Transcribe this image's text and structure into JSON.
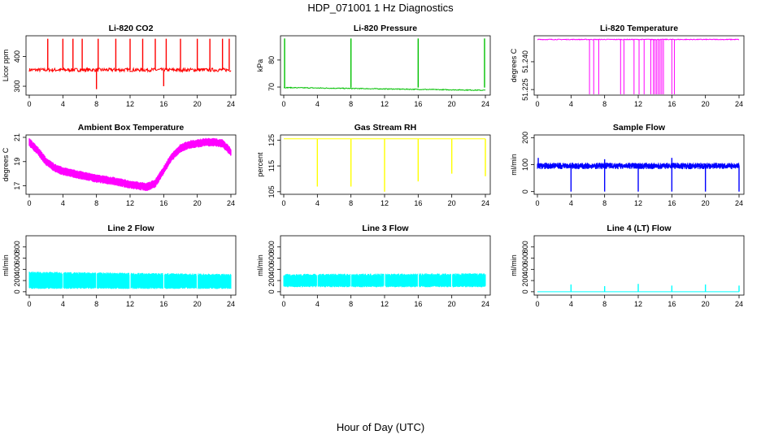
{
  "figure": {
    "title": "HDP_071001  1 Hz Diagnostics",
    "xlabel": "Hour of Day (UTC)"
  },
  "chart_data": [
    {
      "type": "line",
      "title": "Li-820 CO2",
      "ylabel": "Licor ppm",
      "color": "#ff0000",
      "xlim": [
        0,
        24
      ],
      "ylim": [
        270,
        470
      ],
      "xticks": [
        0,
        4,
        8,
        12,
        16,
        20,
        24
      ],
      "yticks": [
        300,
        400
      ],
      "baseline": 355,
      "noise": 6,
      "spikes": [
        {
          "x": 2.2,
          "y": 460
        },
        {
          "x": 4.0,
          "y": 460
        },
        {
          "x": 5.2,
          "y": 460
        },
        {
          "x": 6.3,
          "y": 460
        },
        {
          "x": 8.0,
          "y": 290
        },
        {
          "x": 8.2,
          "y": 460
        },
        {
          "x": 10.3,
          "y": 460
        },
        {
          "x": 12.0,
          "y": 460
        },
        {
          "x": 13.5,
          "y": 460
        },
        {
          "x": 15.0,
          "y": 460
        },
        {
          "x": 16.0,
          "y": 300
        },
        {
          "x": 16.3,
          "y": 460
        },
        {
          "x": 18.0,
          "y": 460
        },
        {
          "x": 20.0,
          "y": 460
        },
        {
          "x": 21.5,
          "y": 460
        },
        {
          "x": 23.0,
          "y": 460
        },
        {
          "x": 23.8,
          "y": 460
        }
      ]
    },
    {
      "type": "line",
      "title": "Li-820 Pressure",
      "ylabel": "kPa",
      "color": "#00c000",
      "xlim": [
        0,
        24
      ],
      "ylim": [
        67,
        89
      ],
      "xticks": [
        0,
        4,
        8,
        12,
        16,
        20,
        24
      ],
      "yticks": [
        70,
        80
      ],
      "baseline_start": 69.8,
      "baseline_end": 68.8,
      "noise": 0.15,
      "spikes": [
        {
          "x": 0.1,
          "y": 88
        },
        {
          "x": 8.0,
          "y": 88
        },
        {
          "x": 16.0,
          "y": 88
        },
        {
          "x": 23.9,
          "y": 88
        }
      ]
    },
    {
      "type": "line",
      "title": "Li-820 Temperature",
      "ylabel": "degrees C",
      "color": "#ff00ff",
      "xlim": [
        0,
        24
      ],
      "ylim": [
        51.222,
        51.254
      ],
      "xticks": [
        0,
        4,
        8,
        12,
        16,
        20,
        24
      ],
      "yticks": [
        51.225,
        51.24
      ],
      "ytick_labels": [
        "51.225",
        "51.240"
      ],
      "baseline": 51.252,
      "noise": 0.0002,
      "dropouts": [
        6.2,
        6.7,
        7.3,
        9.9,
        10.3,
        11.5,
        12.1,
        12.7,
        13.5,
        13.8,
        14.0,
        14.2,
        14.4,
        14.6,
        14.8,
        15.0,
        16.0,
        16.3
      ],
      "drop_to": 51.222
    },
    {
      "type": "line",
      "title": "Ambient Box Temperature",
      "ylabel": "degrees C",
      "color": "#ff00ff",
      "xlim": [
        0,
        24
      ],
      "ylim": [
        16.3,
        21.2
      ],
      "xticks": [
        0,
        4,
        8,
        12,
        16,
        20,
        24
      ],
      "yticks": [
        17,
        19,
        21
      ],
      "x": [
        0,
        1,
        2,
        3,
        4,
        6,
        8,
        10,
        12,
        14,
        15,
        16,
        17,
        18,
        19,
        20,
        21,
        22,
        23,
        24
      ],
      "y": [
        20.6,
        19.9,
        19.0,
        18.5,
        18.2,
        17.9,
        17.6,
        17.4,
        17.1,
        16.9,
        17.2,
        18.3,
        19.4,
        20.1,
        20.4,
        20.5,
        20.6,
        20.6,
        20.5,
        19.8
      ],
      "band": 0.35
    },
    {
      "type": "line",
      "title": "Gas Stream RH",
      "ylabel": "percent",
      "color": "#ffff00",
      "xlim": [
        0,
        24
      ],
      "ylim": [
        104,
        127
      ],
      "xticks": [
        0,
        4,
        8,
        12,
        16,
        20,
        24
      ],
      "yticks": [
        105,
        115,
        125
      ],
      "baseline": 125.5,
      "dips": [
        {
          "x": 4.0,
          "y": 107
        },
        {
          "x": 8.0,
          "y": 107
        },
        {
          "x": 12.0,
          "y": 105
        },
        {
          "x": 16.0,
          "y": 109
        },
        {
          "x": 20.0,
          "y": 112
        },
        {
          "x": 24.0,
          "y": 111
        }
      ]
    },
    {
      "type": "line",
      "title": "Sample Flow",
      "ylabel": "ml/min",
      "color": "#0000ff",
      "xlim": [
        0,
        24
      ],
      "ylim": [
        -10,
        210
      ],
      "xticks": [
        0,
        4,
        8,
        12,
        16,
        20,
        24
      ],
      "yticks": [
        0,
        100,
        200
      ],
      "baseline": 95,
      "band": 12,
      "dips": [
        {
          "x": 4.0,
          "y": 0
        },
        {
          "x": 8.0,
          "y": 0
        },
        {
          "x": 12.0,
          "y": 0
        },
        {
          "x": 16.0,
          "y": 0
        },
        {
          "x": 20.0,
          "y": 0
        },
        {
          "x": 24.0,
          "y": 0
        }
      ],
      "spikes": [
        {
          "x": 0.1,
          "y": 125
        },
        {
          "x": 8.0,
          "y": 120
        },
        {
          "x": 16.0,
          "y": 125
        }
      ]
    },
    {
      "type": "line",
      "title": "Line 2 Flow",
      "ylabel": "ml/min",
      "color": "#00ffff",
      "xlim": [
        0,
        24
      ],
      "ylim": [
        -60,
        1000
      ],
      "xticks": [
        0,
        4,
        8,
        12,
        16,
        20,
        24
      ],
      "yticks": [
        0,
        200,
        400,
        600,
        800
      ],
      "lower": 50,
      "upper_start": 340,
      "upper_end": 300,
      "gaps": [
        4,
        8,
        12,
        16,
        20
      ]
    },
    {
      "type": "line",
      "title": "Line 3 Flow",
      "ylabel": "ml/min",
      "color": "#00ffff",
      "xlim": [
        0,
        24
      ],
      "ylim": [
        -60,
        1000
      ],
      "xticks": [
        0,
        4,
        8,
        12,
        16,
        20,
        24
      ],
      "yticks": [
        0,
        200,
        400,
        600,
        800
      ],
      "lower": 80,
      "upper_start": 300,
      "upper_end": 310,
      "gaps": [
        4,
        8,
        12,
        16,
        20
      ]
    },
    {
      "type": "line",
      "title": "Line 4 (LT) Flow",
      "ylabel": "ml/min",
      "color": "#00ffff",
      "xlim": [
        0,
        24
      ],
      "ylim": [
        -60,
        1000
      ],
      "xticks": [
        0,
        4,
        8,
        12,
        16,
        20,
        24
      ],
      "yticks": [
        0,
        200,
        400,
        600,
        800
      ],
      "baseline": 0,
      "spikes": [
        {
          "x": 4.0,
          "y": 130
        },
        {
          "x": 8.0,
          "y": 100
        },
        {
          "x": 12.0,
          "y": 140
        },
        {
          "x": 16.0,
          "y": 110
        },
        {
          "x": 20.0,
          "y": 130
        },
        {
          "x": 24.0,
          "y": 110
        }
      ]
    }
  ]
}
